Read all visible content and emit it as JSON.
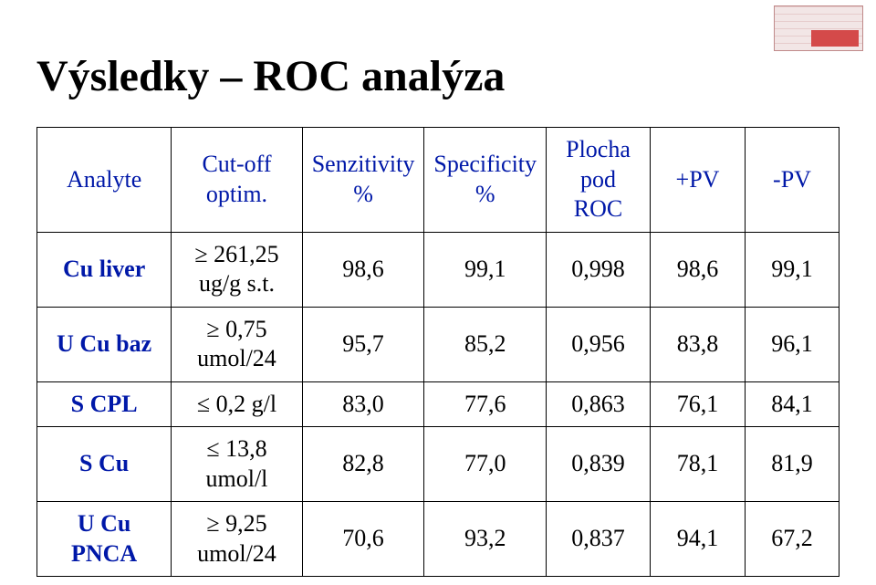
{
  "title": "Výsledky – ROC analýza",
  "colors": {
    "header_text": "#0018a8",
    "rowlabel_text": "#0018a8",
    "body_text": "#000000",
    "border": "#000000",
    "background": "#ffffff"
  },
  "typography": {
    "title_fontsize": 48,
    "cell_fontsize": 26,
    "font_family": "Times New Roman"
  },
  "table": {
    "type": "table",
    "headers": {
      "analyte": "Analyte",
      "cutoff": "Cut-off optim.",
      "sens": "Senzitivity %",
      "spec": "Specificity %",
      "auc": "Plocha pod ROC",
      "ppv": "+PV",
      "npv": "-PV"
    },
    "rows": [
      {
        "label": "Cu liver",
        "cutoff": "≥ 261,25 ug/g s.t.",
        "sens": "98,6",
        "spec": "99,1",
        "auc": "0,998",
        "ppv": "98,6",
        "npv": "99,1"
      },
      {
        "label": "U Cu baz",
        "cutoff": "≥ 0,75 umol/24",
        "sens": "95,7",
        "spec": "85,2",
        "auc": "0,956",
        "ppv": "83,8",
        "npv": "96,1"
      },
      {
        "label": "S CPL",
        "cutoff": "≤ 0,2 g/l",
        "sens": "83,0",
        "spec": "77,6",
        "auc": "0,863",
        "ppv": "76,1",
        "npv": "84,1"
      },
      {
        "label": "S Cu",
        "cutoff": "≤ 13,8 umol/l",
        "sens": "82,8",
        "spec": "77,0",
        "auc": "0,839",
        "ppv": "78,1",
        "npv": "81,9"
      },
      {
        "label": "U Cu PNCA",
        "cutoff": "≥ 9,25 umol/24",
        "sens": "70,6",
        "spec": "93,2",
        "auc": "0,837",
        "ppv": "94,1",
        "npv": "67,2"
      }
    ]
  }
}
